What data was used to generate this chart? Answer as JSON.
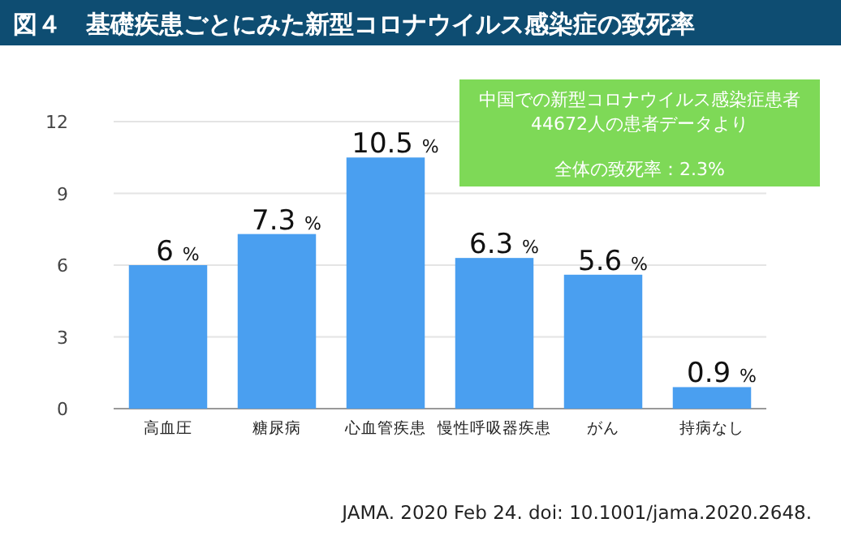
{
  "chart_data": {
    "type": "bar",
    "title": "図４　基礎疾患ごとにみた新型コロナウイルス感染症の致死率",
    "categories": [
      "高血圧",
      "糖尿病",
      "心血管疾患",
      "慢性呼吸器疾患",
      "がん",
      "持病なし"
    ],
    "values": [
      6,
      7.3,
      10.5,
      6.3,
      5.6,
      0.9
    ],
    "value_labels": [
      "6 %",
      "7.3 %",
      "10.5 %",
      "6.3 %",
      "5.6 %",
      "0.9 %"
    ],
    "color": "#4a9ff0",
    "ylim": [
      0,
      12
    ],
    "yticks": [
      0,
      3,
      6,
      9,
      12
    ],
    "grid": "y",
    "annotations": [
      "中国での新型コロナウイルス感染症患者",
      "44672人の患者データより",
      "全体の致死率：2.3%",
      "JAMA. 2020 Feb 24. doi: 10.1001/jama.2020.2648."
    ]
  }
}
